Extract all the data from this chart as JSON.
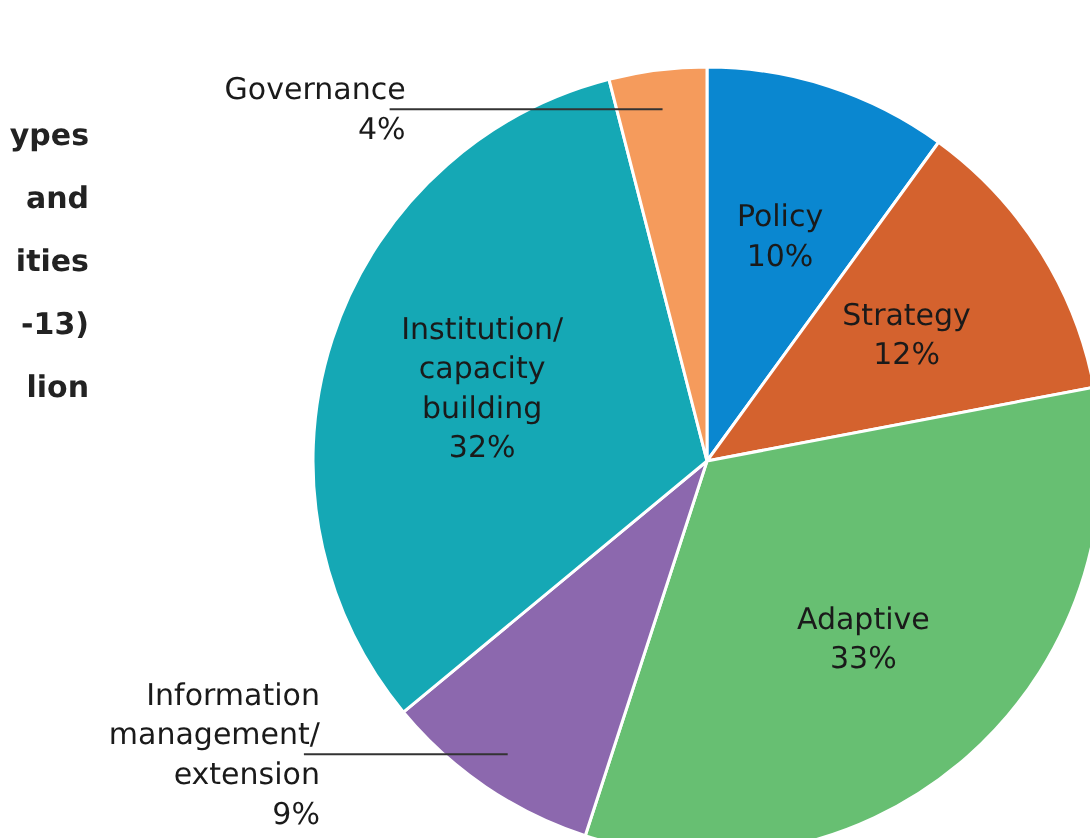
{
  "chart_data": {
    "type": "pie",
    "title": "ypes\nand\nities\n-13)\nlion",
    "categories": [
      "Policy",
      "Strategy",
      "Adaptive",
      "Information\nmanagement/\nextension",
      "Institution/\ncapacity\nbuilding",
      "Governance"
    ],
    "values": [
      10,
      12,
      33,
      9,
      32,
      4
    ],
    "value_labels": [
      "10%",
      "12%",
      "33%",
      "9%",
      "32%",
      "4%"
    ],
    "colors": [
      "#0a87d0",
      "#d4622e",
      "#67bf72",
      "#8c68ae",
      "#15a8b5",
      "#f59b5c"
    ]
  }
}
